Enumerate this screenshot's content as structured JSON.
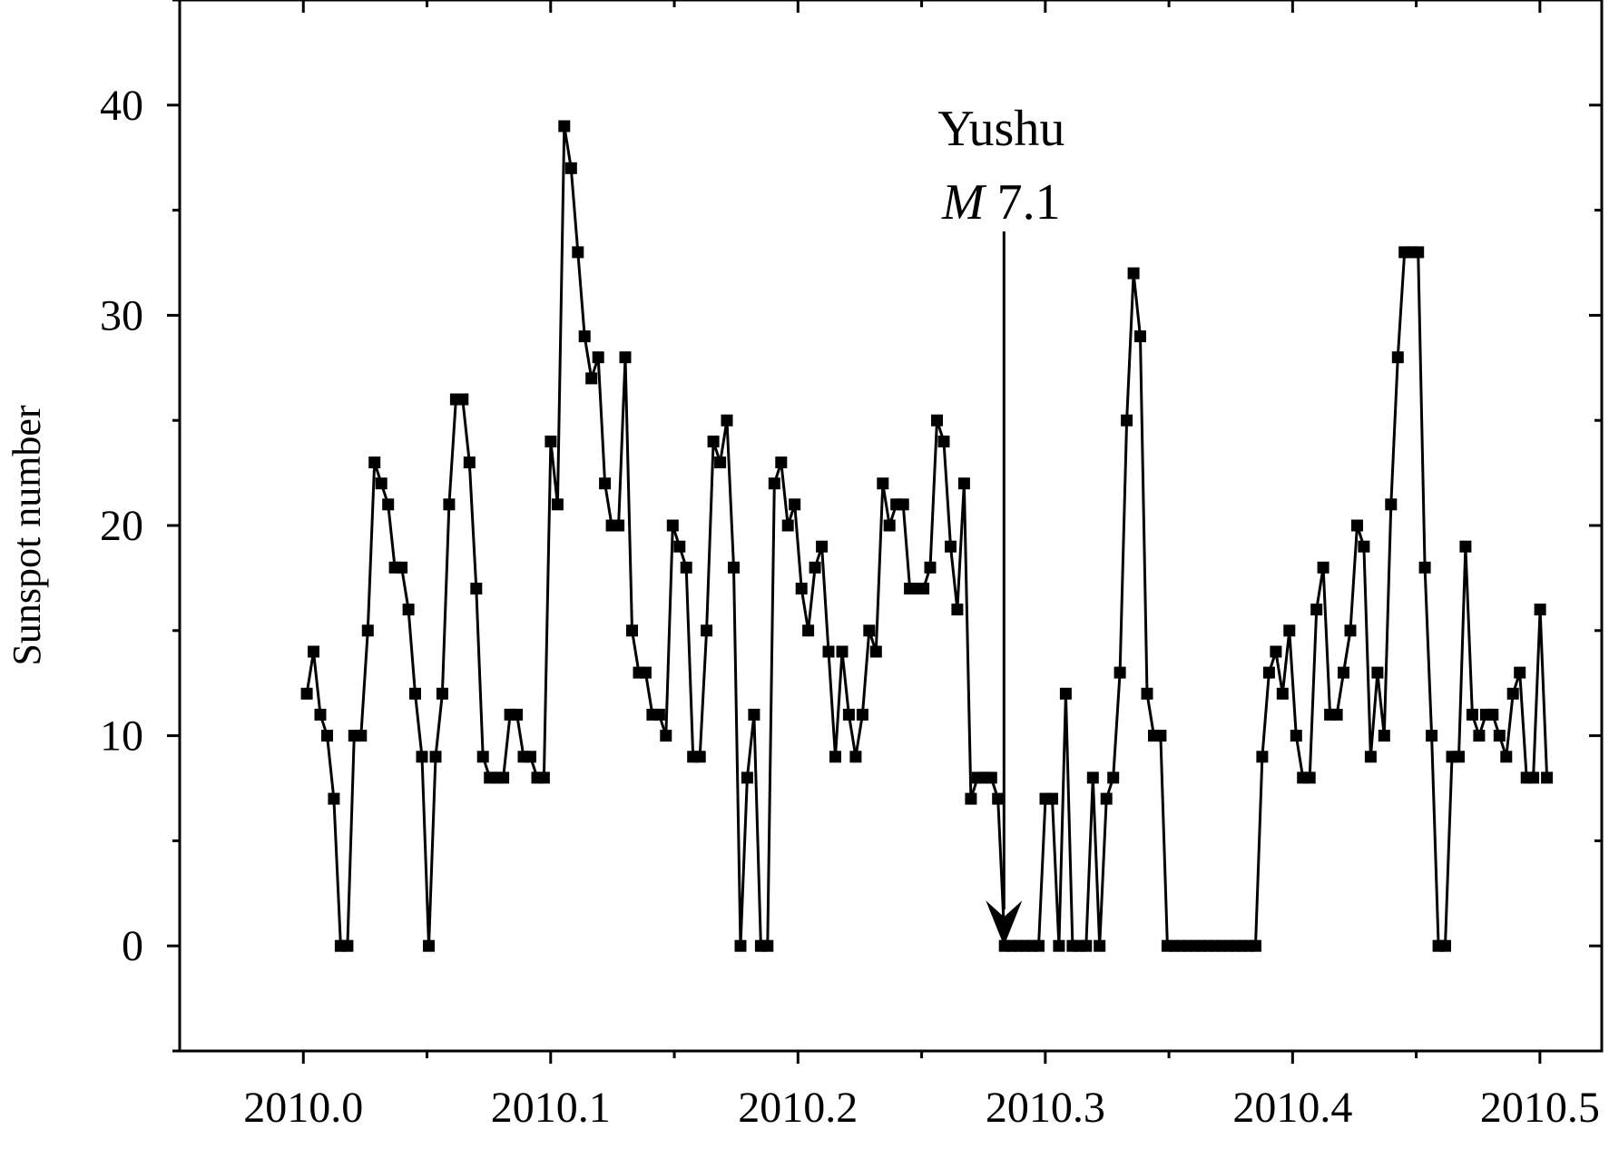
{
  "chart_data": {
    "type": "line",
    "ylabel": "Sunspot number",
    "xlim": [
      2009.95,
      2010.525
    ],
    "ylim": [
      -5,
      45
    ],
    "x_ticks": [
      "2010.0",
      "2010.1",
      "2010.2",
      "2010.3",
      "2010.4",
      "2010.5"
    ],
    "y_ticks": [
      "0",
      "10",
      "20",
      "30",
      "40"
    ],
    "x_tick_values": [
      2010.0,
      2010.1,
      2010.2,
      2010.3,
      2010.4,
      2010.5
    ],
    "y_tick_values": [
      0,
      10,
      20,
      30,
      40
    ],
    "grid": false,
    "marker": "square",
    "color": "#000000",
    "series": [
      {
        "x_start": 2010.0014,
        "x_step": 0.00274,
        "values": [
          12,
          14,
          11,
          10,
          7,
          0,
          0,
          10,
          10,
          15,
          23,
          22,
          21,
          18,
          18,
          16,
          12,
          9,
          0,
          9,
          12,
          21,
          26,
          26,
          23,
          17,
          9,
          8,
          8,
          8,
          11,
          11,
          9,
          9,
          8,
          8,
          24,
          21,
          39,
          37,
          33,
          29,
          27,
          28,
          22,
          20,
          20,
          28,
          15,
          13,
          13,
          11,
          11,
          10,
          20,
          19,
          18,
          9,
          9,
          15,
          24,
          23,
          25,
          18,
          0,
          8,
          11,
          0,
          0,
          22,
          23,
          20,
          21,
          17,
          15,
          18,
          19,
          14,
          9,
          14,
          11,
          9,
          11,
          15,
          14,
          22,
          20,
          21,
          21,
          17,
          17,
          17,
          18,
          25,
          24,
          19,
          16,
          22,
          7,
          8,
          8,
          8,
          7,
          0,
          0,
          0,
          0,
          0,
          0,
          7,
          7,
          0,
          12,
          0,
          0,
          0,
          8,
          0,
          7,
          8,
          13,
          25,
          32,
          29,
          12,
          10,
          10,
          0,
          0,
          0,
          0,
          0,
          0,
          0,
          0,
          0,
          0,
          0,
          0,
          0,
          0,
          9,
          13,
          14,
          12,
          15,
          10,
          8,
          8,
          16,
          18,
          11,
          11,
          13,
          15,
          20,
          19,
          9,
          13,
          10,
          21,
          28,
          33,
          33,
          33,
          18,
          10,
          0,
          0,
          9,
          9,
          19,
          11,
          10,
          11,
          11,
          10,
          9,
          12,
          13,
          8,
          8,
          16,
          8
        ]
      }
    ],
    "annotations": [
      {
        "text": "Yushu",
        "magnitude_label": "M",
        "magnitude_value": " 7.1",
        "x": 2010.2833,
        "y": 0
      }
    ]
  }
}
